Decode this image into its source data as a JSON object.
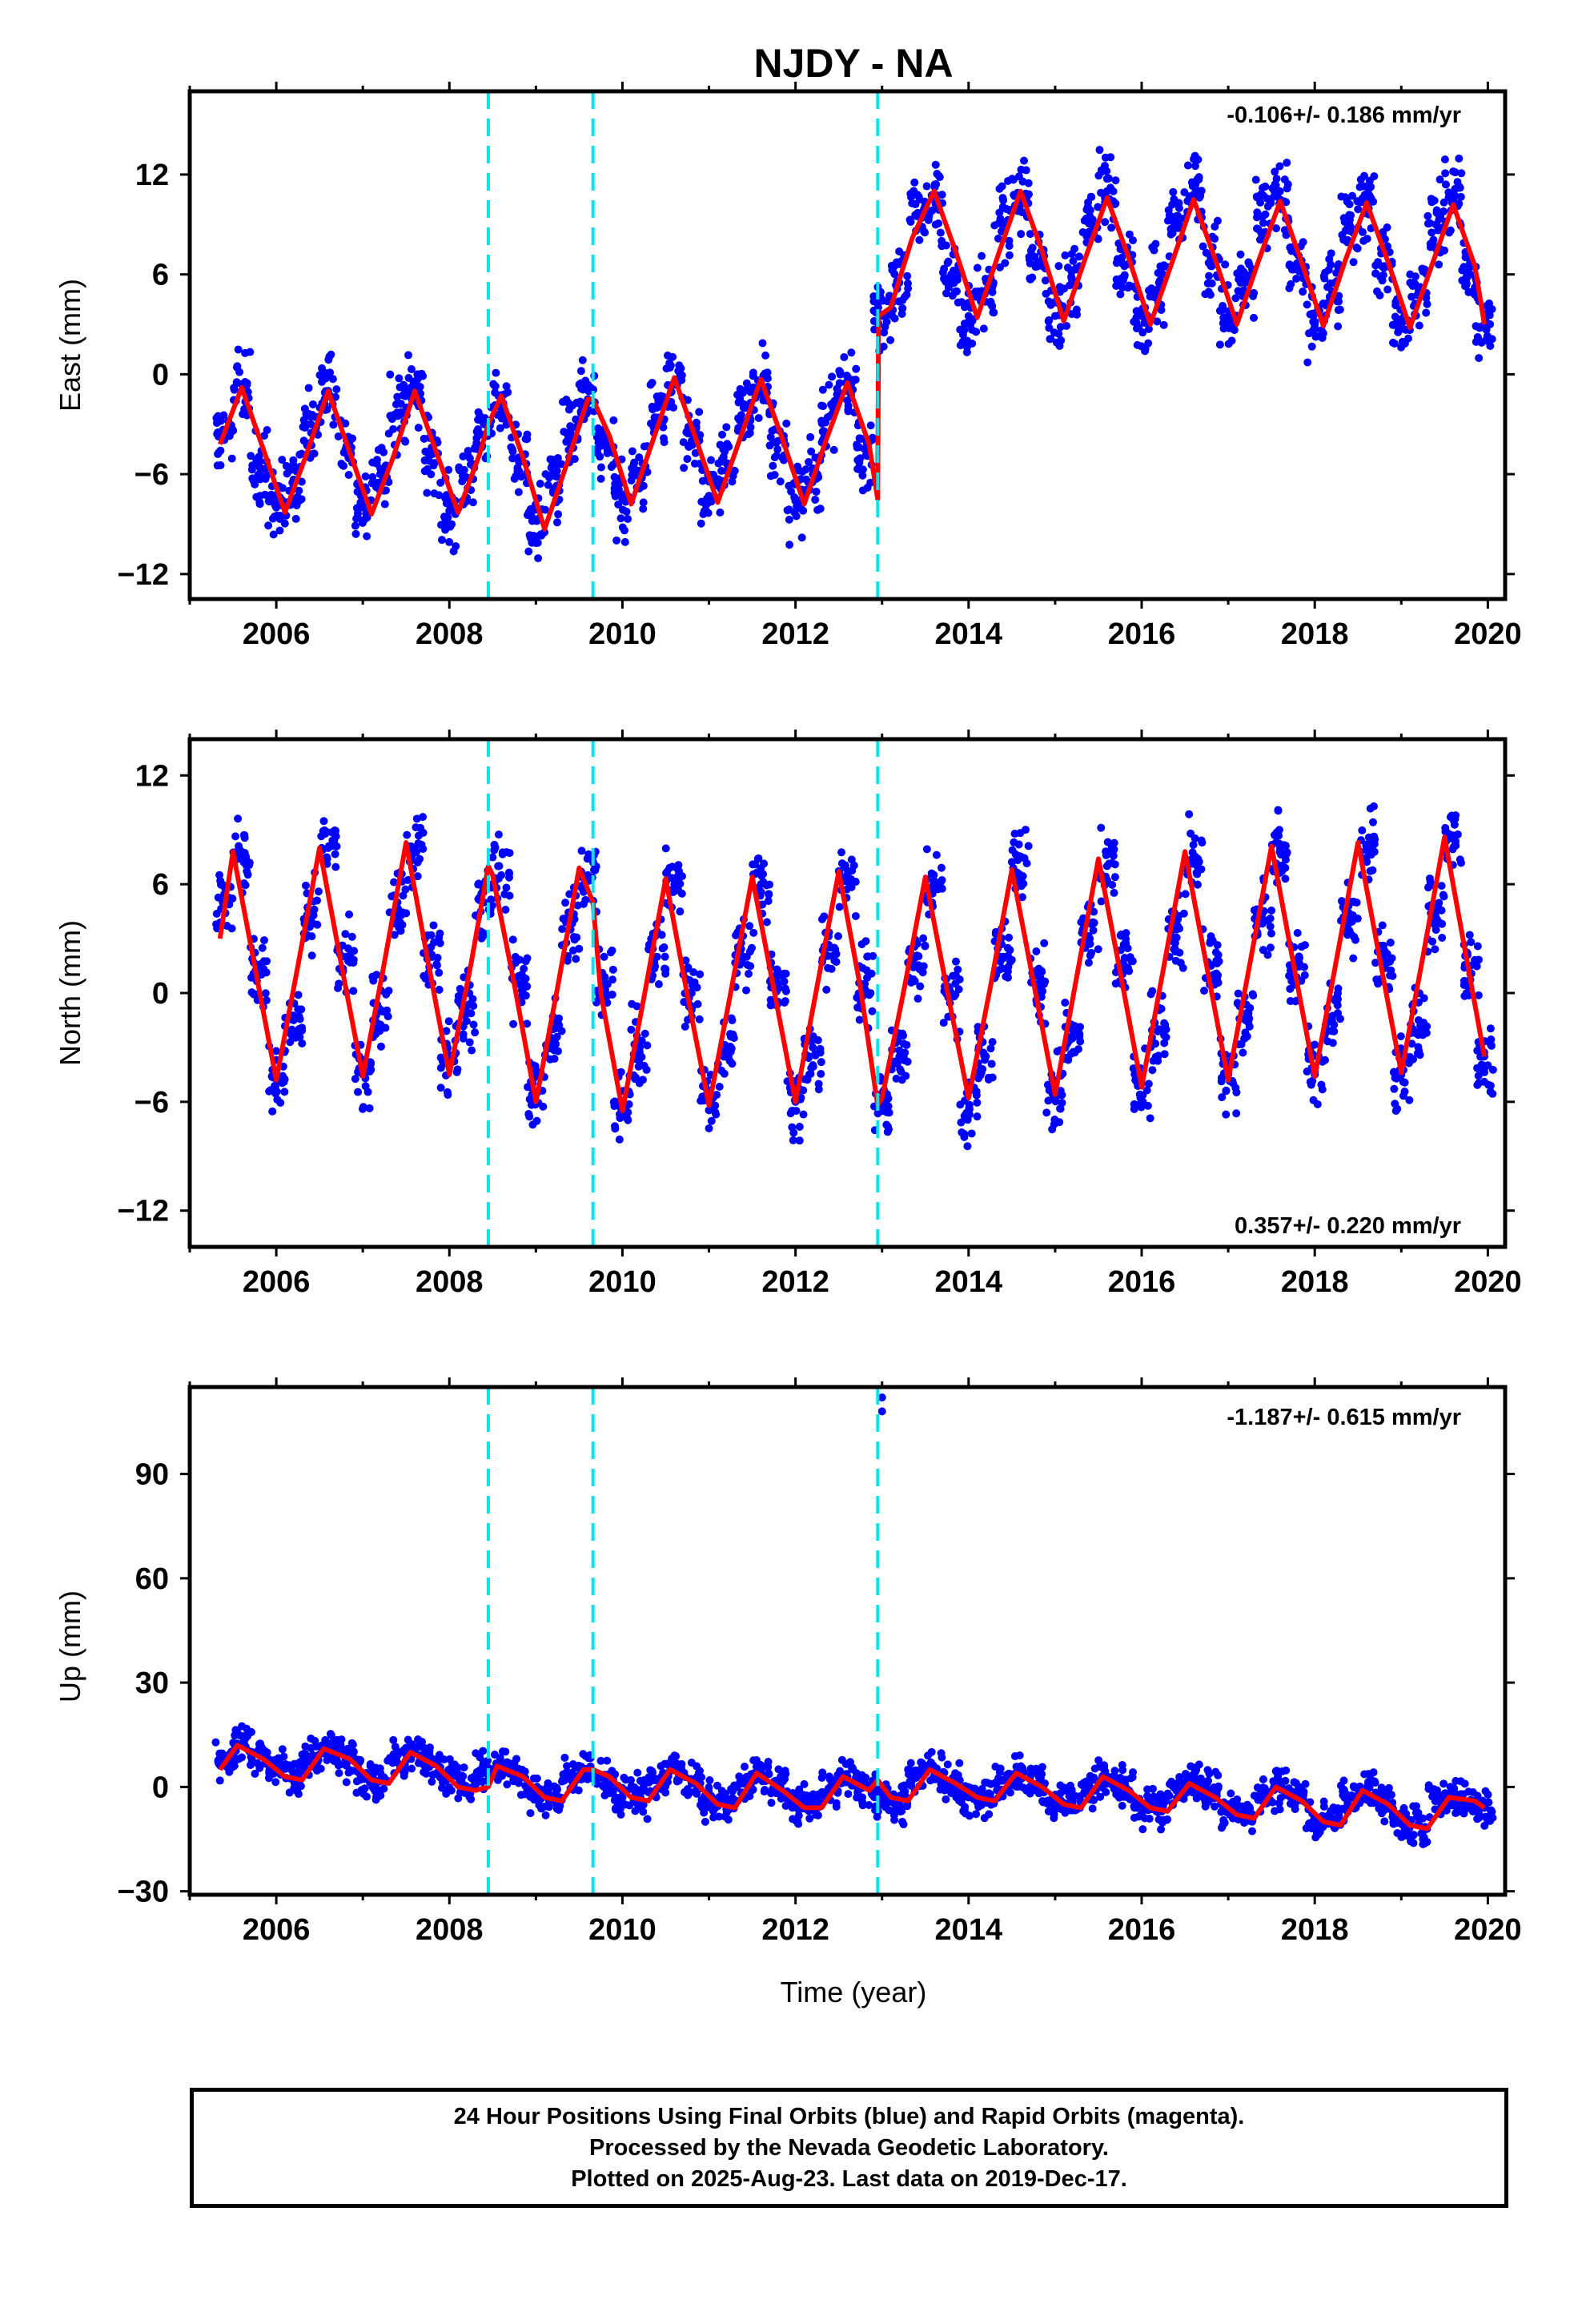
{
  "page": {
    "title": "NJDY - NA",
    "caption_lines": [
      "24 Hour Positions Using Final Orbits (blue) and Rapid Orbits (magenta).",
      "Processed by the Nevada Geodetic Laboratory.",
      "Plotted on 2025-Aug-23. Last data on 2019-Dec-17."
    ]
  },
  "colors": {
    "final_orbits": "#0000ff",
    "model_fit": "#ff0000",
    "offset_lines": "#00e5ee",
    "frame": "#000000"
  },
  "chart_data": [
    {
      "type": "scatter",
      "ylabel": "East (mm)",
      "xlabel": "",
      "xlim": [
        2005.0,
        2020.2
      ],
      "ylim": [
        -13.5,
        17.0
      ],
      "xticks": [
        2006,
        2008,
        2010,
        2012,
        2014,
        2016,
        2018,
        2020
      ],
      "yticks": [
        -12,
        -6,
        0,
        6,
        12
      ],
      "ytick_labels": [
        "−12",
        "−6",
        "0",
        "6",
        "12"
      ],
      "rate_text": "-0.106+/- 0.186 mm/yr",
      "rate_position": "top-right",
      "offset_epochs": [
        2008.45,
        2009.66,
        2012.95
      ],
      "series": [
        {
          "name": "Final Orbits",
          "style": "points",
          "color": "#0000ff",
          "x": [
            2005.4,
            2005.6,
            2005.8,
            2006.0,
            2006.2,
            2006.4,
            2006.6,
            2006.8,
            2007.0,
            2007.2,
            2007.4,
            2007.6,
            2007.8,
            2008.0,
            2008.2,
            2008.4,
            2008.6,
            2008.8,
            2009.0,
            2009.2,
            2009.4,
            2009.6,
            2009.8,
            2010.0,
            2010.2,
            2010.4,
            2010.6,
            2010.8,
            2011.0,
            2011.2,
            2011.4,
            2011.6,
            2011.8,
            2012.0,
            2012.2,
            2012.4,
            2012.6,
            2012.8,
            2013.0,
            2013.2,
            2013.4,
            2013.6,
            2013.8,
            2014.0,
            2014.2,
            2014.4,
            2014.6,
            2014.8,
            2015.0,
            2015.2,
            2015.4,
            2015.6,
            2015.8,
            2016.0,
            2016.2,
            2016.4,
            2016.6,
            2016.8,
            2017.0,
            2017.2,
            2017.4,
            2017.6,
            2017.8,
            2018.0,
            2018.2,
            2018.4,
            2018.6,
            2018.8,
            2019.0,
            2019.2,
            2019.4,
            2019.6,
            2019.8,
            2019.96
          ],
          "y": [
            -3.5,
            -1.0,
            -5.5,
            -8.0,
            -6.5,
            -3.0,
            -1.0,
            -4.5,
            -8.0,
            -6.0,
            -2.5,
            -1.0,
            -4.8,
            -8.2,
            -6.2,
            -3.0,
            -1.5,
            -5.0,
            -8.8,
            -7.0,
            -3.5,
            -1.5,
            -4.2,
            -7.5,
            -5.8,
            -2.0,
            -0.5,
            -4.0,
            -7.3,
            -5.8,
            -2.0,
            -0.5,
            -4.0,
            -7.5,
            -6.0,
            -2.5,
            -0.5,
            -4.5,
            3.5,
            5.5,
            9.5,
            10.5,
            6.0,
            3.5,
            5.0,
            9.0,
            10.5,
            6.5,
            3.5,
            5.5,
            9.5,
            11.0,
            6.5,
            3.5,
            5.5,
            9.5,
            10.8,
            6.5,
            3.5,
            5.5,
            9.5,
            10.5,
            6.5,
            3.0,
            5.0,
            9.0,
            10.5,
            6.5,
            3.0,
            5.0,
            9.0,
            10.5,
            6.0,
            3.0
          ]
        },
        {
          "name": "Model Fit",
          "style": "line",
          "color": "#ff0000",
          "x": [
            2005.35,
            2005.6,
            2005.85,
            2006.1,
            2006.35,
            2006.6,
            2006.85,
            2007.1,
            2007.35,
            2007.6,
            2007.85,
            2008.1,
            2008.35,
            2008.45,
            2008.6,
            2008.85,
            2009.1,
            2009.35,
            2009.6,
            2009.66,
            2009.85,
            2010.1,
            2010.35,
            2010.6,
            2010.85,
            2011.1,
            2011.35,
            2011.6,
            2011.85,
            2012.1,
            2012.35,
            2012.6,
            2012.85,
            2012.95,
            2012.96,
            2013.1,
            2013.35,
            2013.6,
            2013.85,
            2014.1,
            2014.35,
            2014.6,
            2014.85,
            2015.1,
            2015.35,
            2015.6,
            2015.85,
            2016.1,
            2016.35,
            2016.6,
            2016.85,
            2017.1,
            2017.35,
            2017.6,
            2017.85,
            2018.1,
            2018.35,
            2018.6,
            2018.85,
            2019.1,
            2019.35,
            2019.6,
            2019.85,
            2019.96
          ],
          "y": [
            -4.2,
            -0.8,
            -4.5,
            -8.3,
            -4.8,
            -1.0,
            -4.7,
            -8.4,
            -5.0,
            -1.0,
            -4.7,
            -8.3,
            -4.8,
            -3.0,
            -1.3,
            -5.0,
            -9.3,
            -5.5,
            -1.5,
            -1.5,
            -3.7,
            -7.8,
            -4.0,
            -0.2,
            -3.9,
            -7.7,
            -4.0,
            -0.3,
            -3.9,
            -7.8,
            -4.0,
            -0.5,
            -4.2,
            -7.5,
            3.5,
            4.0,
            8.2,
            11.0,
            7.4,
            3.4,
            7.3,
            11.0,
            7.4,
            3.2,
            7.0,
            10.6,
            7.0,
            3.0,
            6.7,
            10.5,
            6.9,
            3.0,
            6.8,
            10.4,
            6.7,
            2.9,
            6.8,
            10.3,
            6.7,
            2.8,
            6.5,
            10.2,
            6.5,
            3.0
          ]
        }
      ]
    },
    {
      "type": "scatter",
      "ylabel": "North (mm)",
      "xlabel": "",
      "xlim": [
        2005.0,
        2020.2
      ],
      "ylim": [
        -14.0,
        14.0
      ],
      "xticks": [
        2006,
        2008,
        2010,
        2012,
        2014,
        2016,
        2018,
        2020
      ],
      "yticks": [
        -12,
        -6,
        0,
        6,
        12
      ],
      "ytick_labels": [
        "−12",
        "−6",
        "0",
        "6",
        "12"
      ],
      "rate_text": "0.357+/- 0.220 mm/yr",
      "rate_position": "bottom-right",
      "offset_epochs": [
        2008.45,
        2009.66,
        2012.95
      ],
      "series": [
        {
          "name": "Final Orbits",
          "style": "points",
          "color": "#0000ff",
          "x": [
            2005.4,
            2005.6,
            2005.8,
            2006.0,
            2006.2,
            2006.4,
            2006.6,
            2006.8,
            2007.0,
            2007.2,
            2007.4,
            2007.6,
            2007.8,
            2008.0,
            2008.2,
            2008.4,
            2008.6,
            2008.8,
            2009.0,
            2009.2,
            2009.4,
            2009.6,
            2009.8,
            2010.0,
            2010.2,
            2010.4,
            2010.6,
            2010.8,
            2011.0,
            2011.2,
            2011.4,
            2011.6,
            2011.8,
            2012.0,
            2012.2,
            2012.4,
            2012.6,
            2012.8,
            2013.0,
            2013.2,
            2013.4,
            2013.6,
            2013.8,
            2014.0,
            2014.2,
            2014.4,
            2014.6,
            2014.8,
            2015.0,
            2015.2,
            2015.4,
            2015.6,
            2015.8,
            2016.0,
            2016.2,
            2016.4,
            2016.6,
            2016.8,
            2017.0,
            2017.2,
            2017.4,
            2017.6,
            2017.8,
            2018.0,
            2018.2,
            2018.4,
            2018.6,
            2018.8,
            2019.0,
            2019.2,
            2019.4,
            2019.6,
            2019.8,
            2019.96
          ],
          "y": [
            5.0,
            7.5,
            1.0,
            -4.5,
            -1.5,
            4.0,
            8.0,
            2.0,
            -4.5,
            -1.0,
            5.0,
            8.0,
            2.0,
            -4.0,
            -1.0,
            5.0,
            6.5,
            0.5,
            -5.5,
            -2.0,
            3.5,
            6.5,
            0.5,
            -6.0,
            -3.0,
            2.0,
            6.0,
            0.0,
            -6.0,
            -3.0,
            2.0,
            6.0,
            0.5,
            -6.0,
            -3.0,
            2.5,
            6.5,
            0.5,
            -6.5,
            -3.5,
            2.0,
            6.0,
            0.0,
            -6.5,
            -3.5,
            2.0,
            6.5,
            0.5,
            -5.5,
            -2.5,
            3.0,
            7.0,
            1.5,
            -5.0,
            -2.0,
            3.5,
            7.5,
            1.5,
            -4.5,
            -1.5,
            4.0,
            8.0,
            1.5,
            -4.5,
            -1.5,
            4.0,
            8.0,
            1.5,
            -4.5,
            -1.5,
            4.5,
            8.5,
            1.5,
            -3.5
          ]
        },
        {
          "name": "Model Fit",
          "style": "line",
          "color": "#ff0000",
          "x": [
            2005.35,
            2005.5,
            2005.75,
            2006.0,
            2006.25,
            2006.5,
            2006.75,
            2007.0,
            2007.25,
            2007.5,
            2007.75,
            2008.0,
            2008.25,
            2008.45,
            2008.5,
            2008.75,
            2009.0,
            2009.25,
            2009.5,
            2009.66,
            2009.75,
            2010.0,
            2010.25,
            2010.5,
            2010.75,
            2011.0,
            2011.25,
            2011.5,
            2011.75,
            2012.0,
            2012.25,
            2012.5,
            2012.75,
            2012.95,
            2013.0,
            2013.25,
            2013.5,
            2013.75,
            2014.0,
            2014.25,
            2014.5,
            2014.75,
            2015.0,
            2015.25,
            2015.5,
            2015.75,
            2016.0,
            2016.25,
            2016.5,
            2016.75,
            2017.0,
            2017.25,
            2017.5,
            2017.75,
            2018.0,
            2018.25,
            2018.5,
            2018.75,
            2019.0,
            2019.25,
            2019.5,
            2019.75,
            2019.96
          ],
          "y": [
            3.0,
            7.8,
            1.5,
            -4.8,
            1.5,
            8.0,
            1.6,
            -4.6,
            1.7,
            8.3,
            1.8,
            -4.5,
            1.6,
            7.0,
            6.5,
            0.5,
            -6.0,
            0.3,
            6.9,
            5.0,
            0.0,
            -6.5,
            -0.2,
            6.3,
            -0.1,
            -6.2,
            0.0,
            6.4,
            0.2,
            -6.0,
            0.4,
            6.7,
            0.3,
            -6.2,
            -5.8,
            0.1,
            6.4,
            0.2,
            -5.8,
            0.3,
            6.8,
            0.6,
            -5.6,
            0.9,
            7.4,
            1.2,
            -5.2,
            1.3,
            7.8,
            1.5,
            -4.8,
            1.6,
            8.1,
            1.7,
            -4.6,
            1.8,
            8.3,
            1.9,
            -4.4,
            2.0,
            8.6,
            2.0,
            -3.5
          ]
        }
      ]
    },
    {
      "type": "scatter",
      "ylabel": "Up (mm)",
      "xlabel": "Time (year)",
      "xlim": [
        2005.0,
        2020.2
      ],
      "ylim": [
        -31.0,
        115.0
      ],
      "xticks": [
        2006,
        2008,
        2010,
        2012,
        2014,
        2016,
        2018,
        2020
      ],
      "yticks": [
        -30,
        0,
        30,
        60,
        90
      ],
      "ytick_labels": [
        "−30",
        "0",
        "30",
        "60",
        "90"
      ],
      "rate_text": "-1.187+/- 0.615 mm/yr",
      "rate_position": "top-right",
      "offset_epochs": [
        2008.45,
        2009.66,
        2012.95
      ],
      "outliers": {
        "x": [
          2013.0,
          2013.0
        ],
        "y": [
          108,
          112
        ]
      },
      "series": [
        {
          "name": "Final Orbits",
          "style": "points",
          "color": "#0000ff",
          "x": [
            2005.4,
            2005.6,
            2005.8,
            2006.0,
            2006.2,
            2006.4,
            2006.6,
            2006.8,
            2007.0,
            2007.2,
            2007.4,
            2007.6,
            2007.8,
            2008.0,
            2008.2,
            2008.4,
            2008.6,
            2008.8,
            2009.0,
            2009.2,
            2009.4,
            2009.6,
            2009.8,
            2010.0,
            2010.2,
            2010.4,
            2010.6,
            2010.8,
            2011.0,
            2011.2,
            2011.4,
            2011.6,
            2011.8,
            2012.0,
            2012.2,
            2012.4,
            2012.6,
            2012.8,
            2013.0,
            2013.2,
            2013.4,
            2013.6,
            2013.8,
            2014.0,
            2014.2,
            2014.4,
            2014.6,
            2014.8,
            2015.0,
            2015.2,
            2015.4,
            2015.6,
            2015.8,
            2016.0,
            2016.2,
            2016.4,
            2016.6,
            2016.8,
            2017.0,
            2017.2,
            2017.4,
            2017.6,
            2017.8,
            2018.0,
            2018.2,
            2018.4,
            2018.6,
            2018.8,
            2019.0,
            2019.2,
            2019.4,
            2019.6,
            2019.8,
            2019.96
          ],
          "y": [
            8,
            12,
            10,
            6,
            3,
            8,
            11,
            8,
            4,
            2,
            7,
            10,
            7,
            3,
            0,
            4,
            6,
            3,
            -2,
            -3,
            3,
            5,
            2,
            -3,
            -3,
            2,
            5,
            1,
            -4,
            -4,
            1,
            4,
            0,
            -5,
            -5,
            0,
            3,
            0,
            -3,
            -4,
            3,
            5,
            1,
            -3,
            -3,
            2,
            4,
            1,
            -5,
            -5,
            0,
            3,
            0,
            -6,
            -6,
            -1,
            2,
            -1,
            -7,
            -8,
            -2,
            0,
            -3,
            -9,
            -9,
            -3,
            -1,
            -4,
            -10,
            -11,
            -4,
            -3,
            -5,
            -6
          ]
        },
        {
          "name": "Model Fit",
          "style": "line",
          "color": "#ff0000",
          "x": [
            2005.35,
            2005.55,
            2005.85,
            2006.1,
            2006.3,
            2006.55,
            2006.85,
            2007.1,
            2007.3,
            2007.55,
            2007.85,
            2008.1,
            2008.3,
            2008.45,
            2008.55,
            2008.85,
            2009.1,
            2009.3,
            2009.55,
            2009.66,
            2009.85,
            2010.1,
            2010.3,
            2010.55,
            2010.85,
            2011.1,
            2011.3,
            2011.55,
            2011.85,
            2012.1,
            2012.3,
            2012.55,
            2012.85,
            2012.95,
            2013.1,
            2013.3,
            2013.55,
            2013.85,
            2014.1,
            2014.3,
            2014.55,
            2014.85,
            2015.1,
            2015.3,
            2015.55,
            2015.85,
            2016.1,
            2016.3,
            2016.55,
            2016.85,
            2017.1,
            2017.3,
            2017.55,
            2017.85,
            2018.1,
            2018.3,
            2018.55,
            2018.85,
            2019.1,
            2019.3,
            2019.55,
            2019.85,
            2019.96
          ],
          "y": [
            5,
            12,
            8,
            3,
            2,
            11,
            8,
            2,
            1,
            10,
            6,
            0,
            -1,
            0,
            6,
            3,
            -3,
            -4,
            5,
            5,
            3,
            -3,
            -4,
            5,
            1,
            -5,
            -6,
            4,
            -1,
            -6,
            -6,
            3,
            -1,
            2,
            -3,
            -4,
            5,
            1,
            -3,
            -4,
            4,
            0,
            -5,
            -6,
            3,
            -1,
            -6,
            -7,
            1,
            -3,
            -8,
            -9,
            0,
            -4,
            -10,
            -11,
            -1,
            -5,
            -11,
            -12,
            -3,
            -4,
            -6
          ]
        }
      ]
    }
  ]
}
